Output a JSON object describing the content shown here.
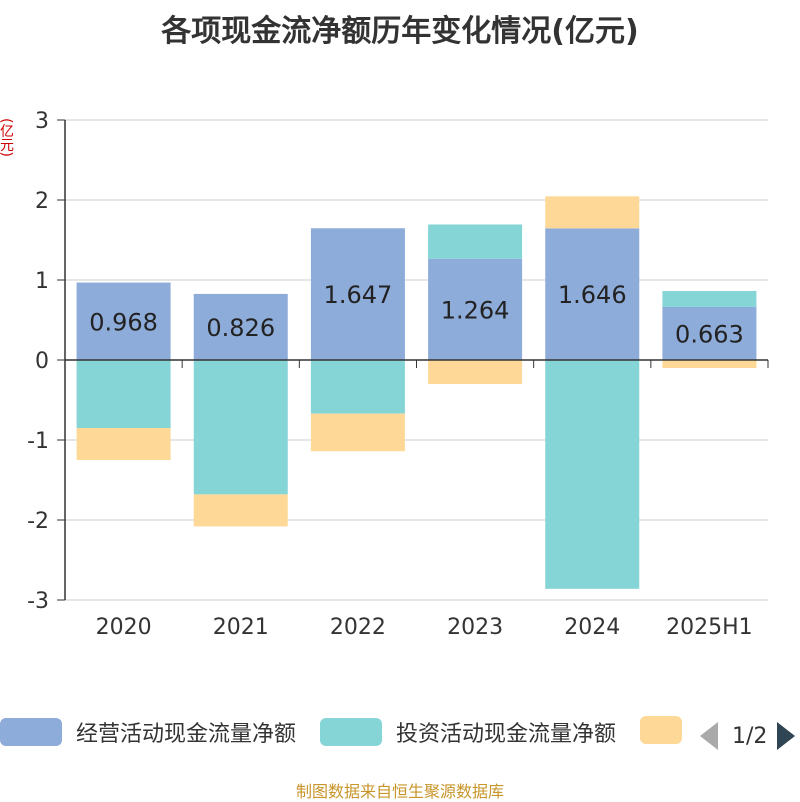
{
  "title": "各项现金流净额历年变化情况(亿元)",
  "unit_label": "(亿元)",
  "source": "制图数据来自恒生聚源数据库",
  "colors": {
    "operating": "#8eacd9",
    "investing": "#85d4d6",
    "financing": "#fed896",
    "axis": "#333333",
    "grid": "#cccccc",
    "unit": "#cc0000",
    "source": "#c8952a"
  },
  "legend": {
    "items": [
      {
        "label": "经营活动现金流量净额",
        "color": "#8eacd9"
      },
      {
        "label": "投资活动现金流量净额",
        "color": "#85d4d6"
      },
      {
        "label": "",
        "color": "#fed896"
      }
    ],
    "page_text": "1/2"
  },
  "chart_data": {
    "type": "bar",
    "stacked": true,
    "categories": [
      "2020",
      "2021",
      "2022",
      "2023",
      "2024",
      "2025H1"
    ],
    "ylim": [
      -3,
      3
    ],
    "yticks": [
      3,
      2,
      1,
      0,
      -1,
      -2,
      -3
    ],
    "grid": true,
    "legend_position": "bottom",
    "series": [
      {
        "name": "经营活动现金流量净额",
        "values": [
          0.968,
          0.826,
          1.647,
          1.264,
          1.646,
          0.663
        ],
        "show_labels": true
      },
      {
        "name": "投资活动现金流量净额",
        "values": [
          -0.85,
          -1.68,
          -0.67,
          0.43,
          -2.86,
          0.2
        ]
      },
      {
        "values": [
          -0.4,
          -0.4,
          -0.47,
          -0.3,
          0.4,
          -0.1
        ]
      }
    ]
  }
}
